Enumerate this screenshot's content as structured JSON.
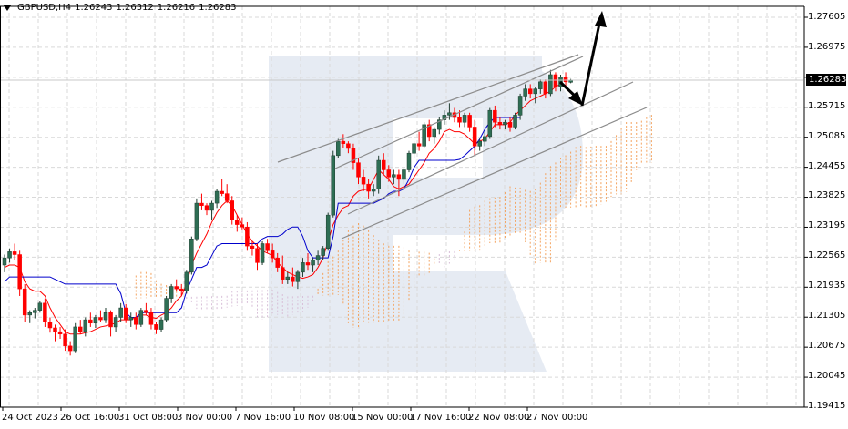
{
  "header": {
    "symbol_timeframe": "GBPUSD,H4",
    "open": "1.26243",
    "high": "1.26312",
    "low": "1.26216",
    "close": "1.26283"
  },
  "colors": {
    "bull_candle": "#2e6e54",
    "bear_candle": "#ff0000",
    "tenkan": "#ff0000",
    "kijun": "#0000cc",
    "senkou_a": "#f4a460",
    "senkou_b": "#d8bfd8",
    "channel_line": "#8c8c8c",
    "arrow": "#000000",
    "watermark": "#e6ebf3",
    "grid": "#d9d9d9"
  },
  "price_axis": {
    "labels": [
      "1.27605",
      "1.26975",
      "1.25715",
      "1.25085",
      "1.24455",
      "1.23825",
      "1.23195",
      "1.22565",
      "1.21935",
      "1.21305",
      "1.20675",
      "1.20045",
      "1.19415"
    ],
    "current_price": "1.26283"
  },
  "time_axis": {
    "labels": [
      "24 Oct 2023",
      "26 Oct 16:00",
      "31 Oct 08:00",
      "3 Nov 00:00",
      "7 Nov 16:00",
      "10 Nov 08:00",
      "15 Nov 00:00",
      "17 Nov 16:00",
      "22 Nov 08:00",
      "27 Nov 00:00"
    ]
  },
  "chart_data": {
    "type": "candlestick",
    "title": "GBPUSD,H4",
    "ohlc_last": {
      "open": 1.26243,
      "high": 1.26312,
      "low": 1.26216,
      "close": 1.26283
    },
    "ylim": [
      1.19415,
      1.27605
    ],
    "y_ticks": [
      1.27605,
      1.26975,
      1.26283,
      1.25715,
      1.25085,
      1.24455,
      1.23825,
      1.23195,
      1.22565,
      1.21935,
      1.21305,
      1.20675,
      1.20045,
      1.19415
    ],
    "x_ticks": [
      "24 Oct 2023",
      "26 Oct 16:00",
      "31 Oct 08:00",
      "3 Nov 00:00",
      "7 Nov 16:00",
      "10 Nov 08:00",
      "15 Nov 00:00",
      "17 Nov 16:00",
      "22 Nov 08:00",
      "27 Nov 00:00"
    ],
    "grid": true,
    "indicators": [
      "Ichimoku Tenkan-sen (red)",
      "Ichimoku Kijun-sen (blue)",
      "Ichimoku Kumo cloud (orange/thistle hatched)"
    ],
    "annotations": [
      "Ascending channel lines (gray)",
      "Arrow down toward lower channel boundary ~1.2580",
      "Arrow up toward ~1.2770"
    ],
    "candles": [
      [
        1.224,
        1.2262,
        1.2225,
        1.2255
      ],
      [
        1.2255,
        1.2275,
        1.2245,
        1.2268
      ],
      [
        1.2268,
        1.2285,
        1.225,
        1.2262
      ],
      [
        1.2262,
        1.227,
        1.2175,
        1.219
      ],
      [
        1.219,
        1.22,
        1.212,
        1.2135
      ],
      [
        1.2135,
        1.2145,
        1.2118,
        1.214
      ],
      [
        1.214,
        1.215,
        1.2128,
        1.2145
      ],
      [
        1.2145,
        1.2165,
        1.214,
        1.216
      ],
      [
        1.216,
        1.217,
        1.211,
        1.212
      ],
      [
        1.212,
        1.213,
        1.2098,
        1.2108
      ],
      [
        1.2108,
        1.2115,
        1.208,
        1.21
      ],
      [
        1.21,
        1.211,
        1.2085,
        1.2095
      ],
      [
        1.2095,
        1.2105,
        1.206,
        1.207
      ],
      [
        1.207,
        1.208,
        1.205,
        1.206
      ],
      [
        1.206,
        1.2118,
        1.2055,
        1.211
      ],
      [
        1.211,
        1.2125,
        1.2095,
        1.21
      ],
      [
        1.21,
        1.213,
        1.209,
        1.2125
      ],
      [
        1.2125,
        1.214,
        1.211,
        1.2118
      ],
      [
        1.2118,
        1.2135,
        1.2108,
        1.213
      ],
      [
        1.213,
        1.2145,
        1.212,
        1.2125
      ],
      [
        1.2125,
        1.215,
        1.2118,
        1.214
      ],
      [
        1.214,
        1.2145,
        1.209,
        1.211
      ],
      [
        1.211,
        1.2135,
        1.21,
        1.213
      ],
      [
        1.213,
        1.216,
        1.212,
        1.215
      ],
      [
        1.215,
        1.2158,
        1.2118,
        1.2125
      ],
      [
        1.2125,
        1.214,
        1.211,
        1.213
      ],
      [
        1.213,
        1.214,
        1.2105,
        1.2115
      ],
      [
        1.2115,
        1.215,
        1.211,
        1.2145
      ],
      [
        1.2145,
        1.216,
        1.2135,
        1.214
      ],
      [
        1.214,
        1.215,
        1.2105,
        1.2115
      ],
      [
        1.2115,
        1.212,
        1.2095,
        1.2105
      ],
      [
        1.2105,
        1.213,
        1.21,
        1.2125
      ],
      [
        1.2125,
        1.2175,
        1.212,
        1.217
      ],
      [
        1.217,
        1.22,
        1.216,
        1.2195
      ],
      [
        1.2195,
        1.221,
        1.2185,
        1.219
      ],
      [
        1.219,
        1.22,
        1.2175,
        1.2185
      ],
      [
        1.2185,
        1.223,
        1.218,
        1.2225
      ],
      [
        1.2225,
        1.23,
        1.222,
        1.2295
      ],
      [
        1.2295,
        1.238,
        1.229,
        1.237
      ],
      [
        1.237,
        1.239,
        1.2355,
        1.2365
      ],
      [
        1.2365,
        1.237,
        1.2345,
        1.2355
      ],
      [
        1.2355,
        1.2375,
        1.2335,
        1.237
      ],
      [
        1.237,
        1.24,
        1.236,
        1.2395
      ],
      [
        1.2395,
        1.242,
        1.2385,
        1.239
      ],
      [
        1.239,
        1.241,
        1.237,
        1.2375
      ],
      [
        1.2375,
        1.2385,
        1.2325,
        1.2335
      ],
      [
        1.2335,
        1.2345,
        1.231,
        1.2325
      ],
      [
        1.2325,
        1.234,
        1.2315,
        1.232
      ],
      [
        1.232,
        1.233,
        1.227,
        1.228
      ],
      [
        1.228,
        1.229,
        1.226,
        1.2275
      ],
      [
        1.2275,
        1.2285,
        1.223,
        1.2245
      ],
      [
        1.2245,
        1.229,
        1.224,
        1.2285
      ],
      [
        1.2285,
        1.2295,
        1.2265,
        1.227
      ],
      [
        1.227,
        1.2285,
        1.2245,
        1.2255
      ],
      [
        1.2255,
        1.2265,
        1.2225,
        1.2235
      ],
      [
        1.2235,
        1.226,
        1.22,
        1.221
      ],
      [
        1.221,
        1.2225,
        1.22,
        1.2215
      ],
      [
        1.2215,
        1.2235,
        1.2195,
        1.2205
      ],
      [
        1.2205,
        1.223,
        1.219,
        1.2225
      ],
      [
        1.2225,
        1.2255,
        1.2215,
        1.2245
      ],
      [
        1.2245,
        1.2265,
        1.223,
        1.224
      ],
      [
        1.224,
        1.2255,
        1.2225,
        1.225
      ],
      [
        1.225,
        1.227,
        1.224,
        1.226
      ],
      [
        1.226,
        1.228,
        1.225,
        1.2275
      ],
      [
        1.2275,
        1.235,
        1.227,
        1.2345
      ],
      [
        1.2345,
        1.248,
        1.234,
        1.247
      ],
      [
        1.247,
        1.2505,
        1.2465,
        1.25
      ],
      [
        1.25,
        1.2515,
        1.2485,
        1.2495
      ],
      [
        1.2495,
        1.25,
        1.2475,
        1.2485
      ],
      [
        1.2485,
        1.2495,
        1.244,
        1.2455
      ],
      [
        1.2455,
        1.2465,
        1.241,
        1.2425
      ],
      [
        1.2425,
        1.244,
        1.2395,
        1.241
      ],
      [
        1.241,
        1.242,
        1.238,
        1.2395
      ],
      [
        1.2395,
        1.241,
        1.2385,
        1.24
      ],
      [
        1.24,
        1.247,
        1.239,
        1.246
      ],
      [
        1.246,
        1.2475,
        1.243,
        1.244
      ],
      [
        1.244,
        1.245,
        1.2415,
        1.2425
      ],
      [
        1.2425,
        1.244,
        1.241,
        1.243
      ],
      [
        1.243,
        1.244,
        1.2385,
        1.242
      ],
      [
        1.242,
        1.2445,
        1.241,
        1.244
      ],
      [
        1.244,
        1.248,
        1.2435,
        1.2475
      ],
      [
        1.2475,
        1.25,
        1.2465,
        1.2495
      ],
      [
        1.2495,
        1.252,
        1.248,
        1.249
      ],
      [
        1.249,
        1.254,
        1.2485,
        1.2535
      ],
      [
        1.2535,
        1.2545,
        1.25,
        1.251
      ],
      [
        1.251,
        1.253,
        1.2495,
        1.2525
      ],
      [
        1.2525,
        1.255,
        1.2515,
        1.2545
      ],
      [
        1.2545,
        1.2565,
        1.2535,
        1.2555
      ],
      [
        1.2555,
        1.258,
        1.2545,
        1.256
      ],
      [
        1.256,
        1.257,
        1.254,
        1.255
      ],
      [
        1.255,
        1.2565,
        1.253,
        1.254
      ],
      [
        1.254,
        1.256,
        1.253,
        1.2555
      ],
      [
        1.2555,
        1.256,
        1.252,
        1.253
      ],
      [
        1.253,
        1.2545,
        1.247,
        1.249
      ],
      [
        1.249,
        1.2505,
        1.248,
        1.25
      ],
      [
        1.25,
        1.252,
        1.249,
        1.251
      ],
      [
        1.251,
        1.257,
        1.2505,
        1.2565
      ],
      [
        1.2565,
        1.2575,
        1.253,
        1.254
      ],
      [
        1.254,
        1.255,
        1.2525,
        1.2535
      ],
      [
        1.2535,
        1.2545,
        1.2525,
        1.254
      ],
      [
        1.254,
        1.255,
        1.252,
        1.253
      ],
      [
        1.253,
        1.256,
        1.2525,
        1.2555
      ],
      [
        1.2555,
        1.26,
        1.2545,
        1.2595
      ],
      [
        1.2595,
        1.262,
        1.2585,
        1.261
      ],
      [
        1.261,
        1.262,
        1.259,
        1.26
      ],
      [
        1.26,
        1.2615,
        1.258,
        1.261
      ],
      [
        1.261,
        1.263,
        1.26,
        1.2625
      ],
      [
        1.2625,
        1.263,
        1.259,
        1.26
      ],
      [
        1.26,
        1.265,
        1.2595,
        1.264
      ],
      [
        1.264,
        1.2645,
        1.2605,
        1.2615
      ],
      [
        1.2615,
        1.264,
        1.2605,
        1.2635
      ],
      [
        1.2635,
        1.2645,
        1.2615,
        1.2625
      ],
      [
        1.2624,
        1.2631,
        1.2622,
        1.2628
      ]
    ],
    "tenkan": [
      1.2235,
      1.224,
      1.224,
      1.2235,
      1.2205,
      1.219,
      1.2185,
      1.2185,
      1.2175,
      1.215,
      1.213,
      1.2115,
      1.21,
      1.2095,
      1.2095,
      1.2095,
      1.2098,
      1.21,
      1.2105,
      1.211,
      1.2112,
      1.2115,
      1.2118,
      1.2125,
      1.2125,
      1.2125,
      1.213,
      1.2135,
      1.2135,
      1.213,
      1.2128,
      1.2135,
      1.214,
      1.215,
      1.2165,
      1.2175,
      1.22,
      1.224,
      1.2265,
      1.2285,
      1.2305,
      1.233,
      1.235,
      1.2365,
      1.2375,
      1.2365,
      1.2345,
      1.2325,
      1.2305,
      1.229,
      1.228,
      1.227,
      1.2265,
      1.226,
      1.2245,
      1.2235,
      1.2225,
      1.222,
      1.2215,
      1.2212,
      1.2215,
      1.222,
      1.2235,
      1.2255,
      1.229,
      1.2325,
      1.2345,
      1.236,
      1.2365,
      1.2385,
      1.2395,
      1.2398,
      1.24,
      1.242,
      1.244,
      1.243,
      1.242,
      1.2405,
      1.24,
      1.2405,
      1.241,
      1.2425,
      1.244,
      1.2455,
      1.2475,
      1.2485,
      1.25,
      1.252,
      1.2525,
      1.252,
      1.252,
      1.2515,
      1.2505,
      1.2495,
      1.25,
      1.2505,
      1.252,
      1.2535,
      1.2535,
      1.2535,
      1.254,
      1.2555,
      1.2565,
      1.2575,
      1.2585,
      1.259,
      1.2595,
      1.26,
      1.2605,
      1.2615,
      1.262
    ],
    "kijun": [
      1.2205,
      1.2215,
      1.2215,
      1.2215,
      1.2215,
      1.2215,
      1.2215,
      1.2215,
      1.2215,
      1.2215,
      1.221,
      1.2205,
      1.22,
      1.22,
      1.22,
      1.22,
      1.22,
      1.22,
      1.22,
      1.22,
      1.22,
      1.22,
      1.22,
      1.218,
      1.214,
      1.213,
      1.213,
      1.214,
      1.214,
      1.214,
      1.214,
      1.214,
      1.214,
      1.214,
      1.214,
      1.215,
      1.2185,
      1.221,
      1.2235,
      1.2235,
      1.224,
      1.226,
      1.228,
      1.2285,
      1.2285,
      1.2285,
      1.2285,
      1.2285,
      1.2285,
      1.2285,
      1.2285,
      1.2295,
      1.23,
      1.23,
      1.23,
      1.2305,
      1.2315,
      1.232,
      1.232,
      1.23,
      1.227,
      1.2255,
      1.2255,
      1.2255,
      1.2255,
      1.23,
      1.237,
      1.237,
      1.237,
      1.237,
      1.237,
      1.237,
      1.237,
      1.237,
      1.2375,
      1.238,
      1.239,
      1.2395,
      1.2395,
      1.24,
      1.242,
      1.2445,
      1.246,
      1.246,
      1.246,
      1.246,
      1.246,
      1.246,
      1.246,
      1.246,
      1.2462,
      1.247,
      1.248,
      1.249,
      1.2505,
      1.2525,
      1.254,
      1.255,
      1.255,
      1.255,
      1.255,
      1.255,
      1.255
    ]
  }
}
